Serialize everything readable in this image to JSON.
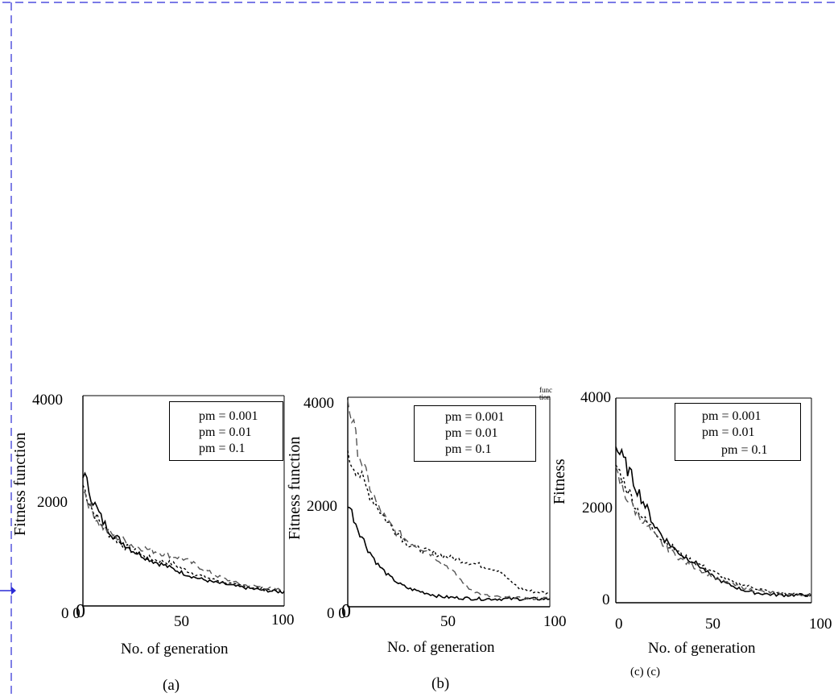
{
  "chart_data": [
    {
      "type": "line",
      "panel": "(a)",
      "title": "",
      "xlabel": "No. of generation",
      "ylabel": "Fitness function",
      "xlim": [
        0,
        100
      ],
      "ylim": [
        0,
        4000
      ],
      "x_ticks": [
        "0",
        "50",
        "100"
      ],
      "y_ticks": [
        "0",
        "2000",
        "4000"
      ],
      "legend": "top-right",
      "series": [
        {
          "name": "pm = 0.001",
          "style": "dotted",
          "x": [
            0,
            5,
            10,
            15,
            20,
            25,
            30,
            35,
            40,
            45,
            50,
            55,
            60,
            65,
            70,
            75,
            80,
            85,
            90,
            95,
            100
          ],
          "y": [
            2300,
            1800,
            1500,
            1300,
            1150,
            1050,
            950,
            880,
            850,
            800,
            700,
            620,
            560,
            500,
            460,
            400,
            380,
            350,
            320,
            300,
            280
          ]
        },
        {
          "name": "pm = 0.01",
          "style": "solid",
          "x": [
            0,
            5,
            10,
            15,
            20,
            25,
            30,
            35,
            40,
            45,
            50,
            55,
            60,
            65,
            70,
            75,
            80,
            85,
            90,
            95,
            100
          ],
          "y": [
            2550,
            2000,
            1600,
            1350,
            1200,
            1050,
            950,
            850,
            780,
            700,
            620,
            550,
            500,
            450,
            420,
            380,
            350,
            320,
            300,
            280,
            260
          ]
        },
        {
          "name": "pm = 0.1",
          "style": "dashed",
          "x": [
            0,
            5,
            10,
            15,
            20,
            25,
            30,
            35,
            40,
            45,
            50,
            55,
            60,
            65,
            70,
            75,
            80,
            85,
            90,
            95,
            100
          ],
          "y": [
            2250,
            1750,
            1500,
            1350,
            1250,
            1150,
            1100,
            1050,
            1000,
            950,
            900,
            800,
            700,
            600,
            520,
            450,
            400,
            380,
            350,
            320,
            300
          ]
        }
      ]
    },
    {
      "type": "line",
      "panel": "(b)",
      "title": "",
      "xlabel": "No. of generation",
      "ylabel": "Fitness function",
      "xlim": [
        0,
        100
      ],
      "ylim": [
        0,
        4000
      ],
      "x_ticks": [
        "0",
        "50",
        "100"
      ],
      "y_ticks": [
        "0",
        "2000",
        "4000"
      ],
      "legend": "top-right",
      "series": [
        {
          "name": "pm = 0.001",
          "style": "dotted",
          "x": [
            0,
            5,
            10,
            15,
            20,
            25,
            30,
            35,
            40,
            45,
            50,
            55,
            60,
            65,
            70,
            75,
            80,
            85,
            90,
            95,
            100
          ],
          "y": [
            2850,
            2600,
            2200,
            1900,
            1600,
            1400,
            1200,
            1100,
            1050,
            1000,
            950,
            900,
            850,
            800,
            750,
            700,
            500,
            350,
            300,
            280,
            250
          ]
        },
        {
          "name": "pm = 0.01",
          "style": "solid",
          "x": [
            0,
            5,
            10,
            15,
            20,
            25,
            30,
            35,
            40,
            45,
            50,
            55,
            60,
            65,
            70,
            75,
            80,
            85,
            90,
            95,
            100
          ],
          "y": [
            2000,
            1500,
            1100,
            800,
            600,
            450,
            350,
            300,
            250,
            200,
            180,
            170,
            160,
            150,
            150,
            150,
            150,
            150,
            150,
            150,
            150
          ]
        },
        {
          "name": "pm = 0.1",
          "style": "dashed",
          "x": [
            0,
            5,
            10,
            15,
            20,
            25,
            30,
            35,
            40,
            45,
            50,
            55,
            60,
            65,
            70,
            75,
            80,
            85,
            90,
            95,
            100
          ],
          "y": [
            4000,
            3000,
            2400,
            1900,
            1600,
            1400,
            1250,
            1150,
            1050,
            900,
            750,
            550,
            350,
            250,
            200,
            180,
            170,
            160,
            160,
            160,
            160
          ]
        }
      ]
    },
    {
      "type": "line",
      "panel": "(c)",
      "title": "",
      "xlabel": "No. of generation",
      "ylabel": "Fitness",
      "xlim": [
        0,
        100
      ],
      "ylim": [
        0,
        4000
      ],
      "x_ticks": [
        "0",
        "50",
        "100"
      ],
      "y_ticks": [
        "0",
        "2000",
        "4000"
      ],
      "legend": "top-right",
      "series": [
        {
          "name": "pm = 0.001",
          "style": "dotted",
          "x": [
            0,
            5,
            10,
            15,
            20,
            25,
            30,
            35,
            40,
            45,
            50,
            55,
            60,
            65,
            70,
            75,
            80,
            85,
            90,
            95,
            100
          ],
          "y": [
            2700,
            2300,
            1900,
            1600,
            1400,
            1200,
            1050,
            900,
            800,
            700,
            600,
            500,
            400,
            350,
            300,
            250,
            200,
            180,
            170,
            160,
            150
          ]
        },
        {
          "name": "pm = 0.01",
          "style": "solid",
          "x": [
            0,
            5,
            10,
            15,
            20,
            25,
            30,
            35,
            40,
            45,
            50,
            55,
            60,
            65,
            70,
            75,
            80,
            85,
            90,
            95,
            100
          ],
          "y": [
            3050,
            2700,
            2300,
            1900,
            1500,
            1250,
            1050,
            900,
            800,
            650,
            500,
            400,
            320,
            250,
            200,
            180,
            160,
            150,
            150,
            150,
            150
          ]
        },
        {
          "name": "pm = 0.1",
          "style": "dashed",
          "x": [
            0,
            5,
            10,
            15,
            20,
            25,
            30,
            35,
            40,
            45,
            50,
            55,
            60,
            65,
            70,
            75,
            80,
            85,
            90,
            95,
            100
          ],
          "y": [
            2550,
            2100,
            1800,
            1550,
            1300,
            1100,
            950,
            800,
            700,
            600,
            500,
            420,
            350,
            300,
            250,
            220,
            200,
            180,
            170,
            160,
            150
          ]
        }
      ]
    }
  ],
  "panels": [
    {
      "caption": "(a)",
      "y_zero_label": "0 0",
      "x_zero_label": "",
      "ylabel_extra": ""
    },
    {
      "caption": "(b)",
      "y_zero_label": "0 0",
      "x_zero_label": "",
      "ylabel_extra": "func tion"
    },
    {
      "caption": "(c) (c)",
      "y_zero_label": "0",
      "x_zero_label": "0",
      "ylabel_extra": ""
    }
  ],
  "colors": {
    "axis": "#000000",
    "frame_border": "#2b2bd6",
    "line": "#000000",
    "gray_dash": "#555555"
  }
}
